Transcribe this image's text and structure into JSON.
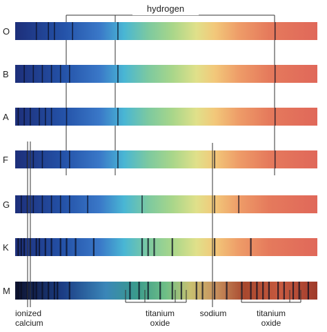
{
  "figure": {
    "top_label": "hydrogen",
    "rows": [
      {
        "class": "O",
        "lines": [
          0.07,
          0.11,
          0.13,
          0.19,
          0.34,
          0.86
        ]
      },
      {
        "class": "B",
        "lines": [
          0.03,
          0.06,
          0.09,
          0.12,
          0.15,
          0.18,
          0.34,
          0.86
        ]
      },
      {
        "class": "A",
        "lines": [
          0.01,
          0.03,
          0.05,
          0.08,
          0.1,
          0.12,
          0.17,
          0.34,
          0.86
        ]
      },
      {
        "class": "F",
        "lines": [
          0.04,
          0.06,
          0.09,
          0.15,
          0.18,
          0.34,
          0.66,
          0.86
        ]
      },
      {
        "class": "G",
        "lines": [
          0.02,
          0.04,
          0.06,
          0.09,
          0.12,
          0.15,
          0.18,
          0.24,
          0.42,
          0.66,
          0.74
        ]
      },
      {
        "class": "K",
        "lines": [
          0.01,
          0.02,
          0.03,
          0.05,
          0.07,
          0.08,
          0.1,
          0.12,
          0.15,
          0.17,
          0.2,
          0.26,
          0.42,
          0.44,
          0.46,
          0.52,
          0.66,
          0.78
        ]
      },
      {
        "class": "M",
        "lines": [
          0.01,
          0.02,
          0.04,
          0.06,
          0.07,
          0.09,
          0.11,
          0.13,
          0.14,
          0.18,
          0.38,
          0.41,
          0.44,
          0.48,
          0.52,
          0.55,
          0.6,
          0.62,
          0.66,
          0.7,
          0.75,
          0.78,
          0.8,
          0.82,
          0.84,
          0.87,
          0.89,
          0.92,
          0.94,
          0.97
        ]
      }
    ],
    "bottom_labels": {
      "ionized_line1": "ionized",
      "ionized_line2": "calcium",
      "titanium1_line1": "titanium",
      "titanium1_line2": "oxide",
      "sodium": "sodium",
      "titanium2_line1": "titanium",
      "titanium2_line2": "oxide"
    },
    "colors": {
      "line": "#333333",
      "text": "#222222"
    }
  }
}
